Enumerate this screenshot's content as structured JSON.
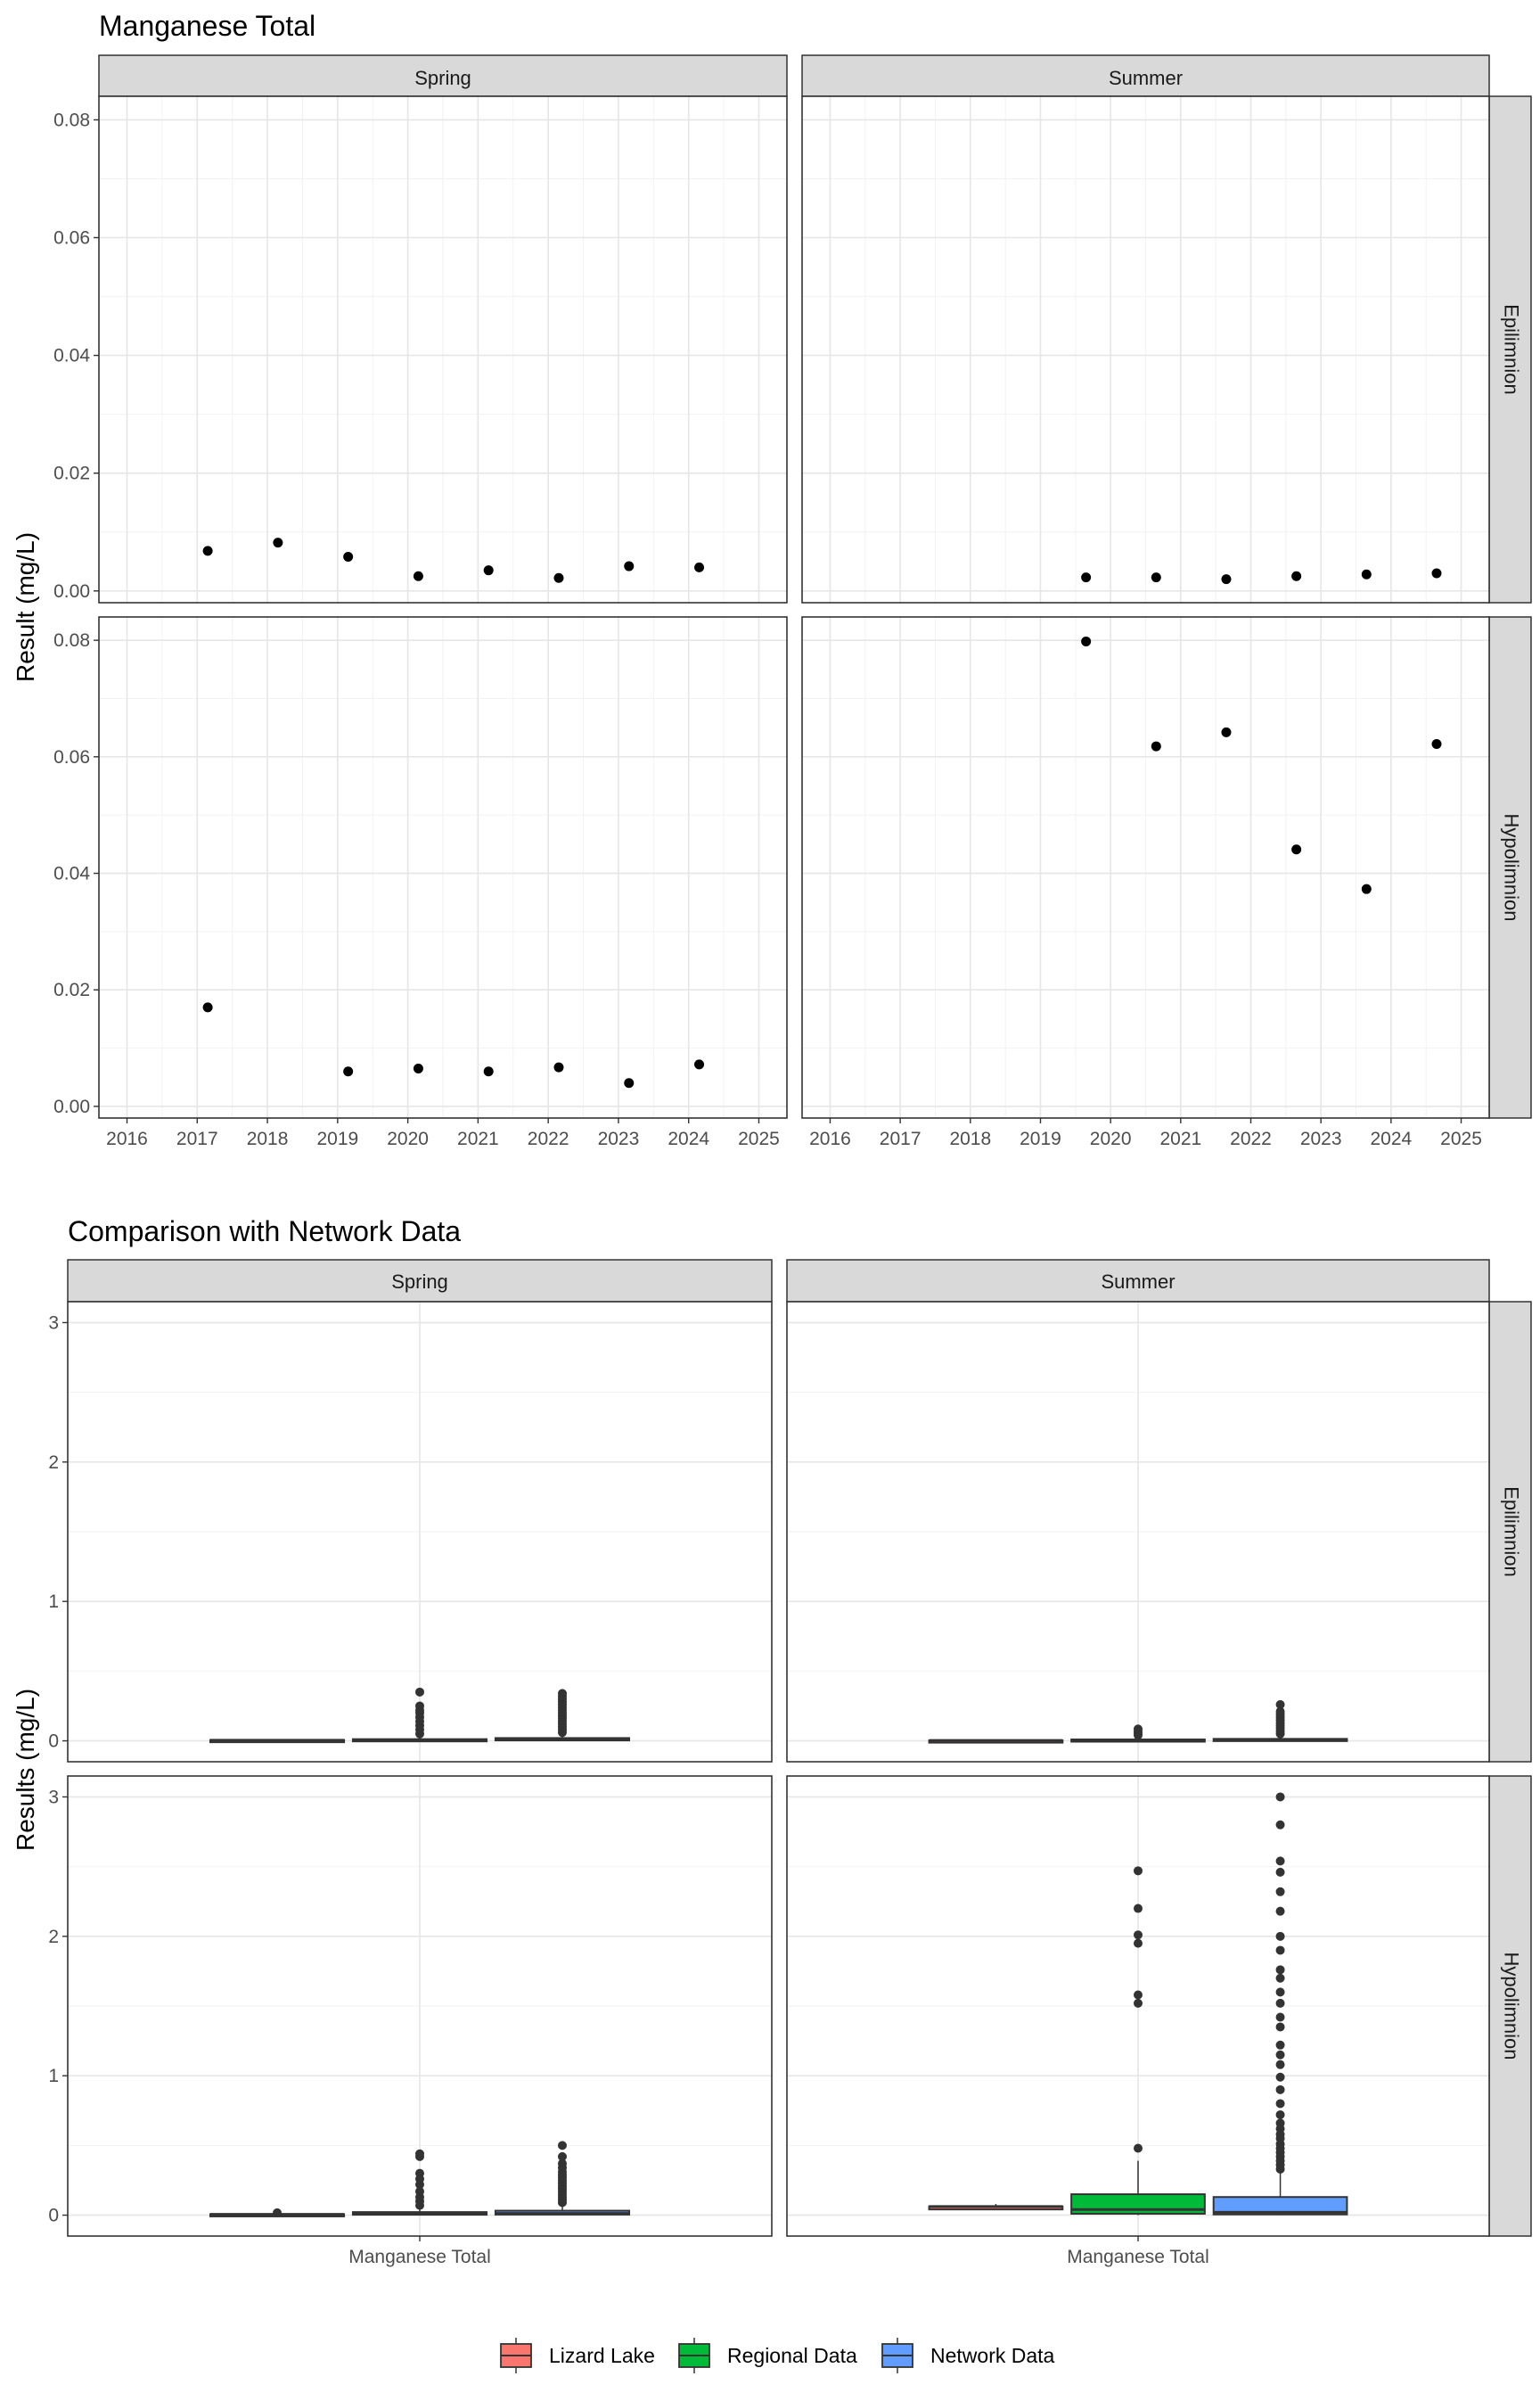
{
  "chart_data": [
    {
      "type": "scatter",
      "title": "Manganese Total",
      "ylabel": "Result (mg/L)",
      "xlabel": "",
      "columns": [
        "Spring",
        "Summer"
      ],
      "rows": [
        "Epilimnion",
        "Hypolimnion"
      ],
      "x_ticks": [
        2016,
        2017,
        2018,
        2019,
        2020,
        2021,
        2022,
        2023,
        2024,
        2025
      ],
      "xlim": [
        2015.6,
        2025.4
      ],
      "y_ticks": [
        "0.00",
        "0.02",
        "0.04",
        "0.06",
        "0.08"
      ],
      "ylim": [
        -0.002,
        0.084
      ],
      "grid": true,
      "panels": [
        {
          "row": "Epilimnion",
          "col": "Spring",
          "points": [
            {
              "x": 2017.15,
              "y": 0.0068
            },
            {
              "x": 2018.15,
              "y": 0.0082
            },
            {
              "x": 2019.15,
              "y": 0.0058
            },
            {
              "x": 2020.15,
              "y": 0.0025
            },
            {
              "x": 2021.15,
              "y": 0.0035
            },
            {
              "x": 2022.15,
              "y": 0.0022
            },
            {
              "x": 2023.15,
              "y": 0.0042
            },
            {
              "x": 2024.15,
              "y": 0.004
            }
          ]
        },
        {
          "row": "Epilimnion",
          "col": "Summer",
          "points": [
            {
              "x": 2019.65,
              "y": 0.0023
            },
            {
              "x": 2020.65,
              "y": 0.0023
            },
            {
              "x": 2021.65,
              "y": 0.002
            },
            {
              "x": 2022.65,
              "y": 0.0025
            },
            {
              "x": 2023.65,
              "y": 0.0028
            },
            {
              "x": 2024.65,
              "y": 0.003
            }
          ]
        },
        {
          "row": "Hypolimnion",
          "col": "Spring",
          "points": [
            {
              "x": 2017.15,
              "y": 0.017
            },
            {
              "x": 2019.15,
              "y": 0.006
            },
            {
              "x": 2020.15,
              "y": 0.0065
            },
            {
              "x": 2021.15,
              "y": 0.006
            },
            {
              "x": 2022.15,
              "y": 0.0067
            },
            {
              "x": 2023.15,
              "y": 0.004
            },
            {
              "x": 2024.15,
              "y": 0.0072
            }
          ]
        },
        {
          "row": "Hypolimnion",
          "col": "Summer",
          "points": [
            {
              "x": 2019.65,
              "y": 0.0798
            },
            {
              "x": 2020.65,
              "y": 0.0618
            },
            {
              "x": 2021.65,
              "y": 0.0642
            },
            {
              "x": 2022.65,
              "y": 0.0441
            },
            {
              "x": 2023.65,
              "y": 0.0373
            },
            {
              "x": 2024.65,
              "y": 0.0622
            }
          ]
        }
      ]
    },
    {
      "type": "box",
      "title": "Comparison with Network Data",
      "ylabel": "Results (mg/L)",
      "xlabel": "",
      "columns": [
        "Spring",
        "Summer"
      ],
      "rows": [
        "Epilimnion",
        "Hypolimnion"
      ],
      "x_tick": "Manganese Total",
      "y_ticks": [
        "0",
        "1",
        "2",
        "3"
      ],
      "ylim": [
        -0.15,
        3.15
      ],
      "grid": true,
      "legend": {
        "position": "bottom",
        "entries": [
          {
            "name": "Lizard Lake",
            "color": "#F8766D"
          },
          {
            "name": "Regional Data",
            "color": "#00BA38"
          },
          {
            "name": "Network Data",
            "color": "#619CFF"
          }
        ]
      },
      "panels": [
        {
          "row": "Epilimnion",
          "col": "Spring",
          "groups": [
            {
              "group": "Lizard Lake",
              "q1": 0.003,
              "median": 0.004,
              "q3": 0.006,
              "whisker_low": 0.002,
              "whisker_high": 0.008,
              "outliers": []
            },
            {
              "group": "Regional Data",
              "q1": 0.002,
              "median": 0.005,
              "q3": 0.012,
              "whisker_low": 0.0,
              "whisker_high": 0.025,
              "outliers": [
                0.05,
                0.08,
                0.11,
                0.14,
                0.17,
                0.2,
                0.22,
                0.25,
                0.35
              ]
            },
            {
              "group": "Network Data",
              "q1": 0.003,
              "median": 0.008,
              "q3": 0.02,
              "whisker_low": 0.0,
              "whisker_high": 0.045,
              "outliers": [
                0.06,
                0.08,
                0.1,
                0.12,
                0.14,
                0.16,
                0.18,
                0.2,
                0.22,
                0.24,
                0.26,
                0.28,
                0.3,
                0.32,
                0.34
              ]
            }
          ]
        },
        {
          "row": "Epilimnion",
          "col": "Summer",
          "groups": [
            {
              "group": "Lizard Lake",
              "q1": 0.002,
              "median": 0.0025,
              "q3": 0.003,
              "whisker_low": 0.002,
              "whisker_high": 0.003,
              "outliers": []
            },
            {
              "group": "Regional Data",
              "q1": 0.002,
              "median": 0.004,
              "q3": 0.01,
              "whisker_low": 0.0,
              "whisker_high": 0.02,
              "outliers": [
                0.04,
                0.055,
                0.07,
                0.085
              ]
            },
            {
              "group": "Network Data",
              "q1": 0.002,
              "median": 0.005,
              "q3": 0.014,
              "whisker_low": 0.0,
              "whisker_high": 0.03,
              "outliers": [
                0.05,
                0.07,
                0.09,
                0.11,
                0.13,
                0.15,
                0.17,
                0.19,
                0.21,
                0.26
              ]
            }
          ]
        },
        {
          "row": "Hypolimnion",
          "col": "Spring",
          "groups": [
            {
              "group": "Lizard Lake",
              "q1": 0.005,
              "median": 0.006,
              "q3": 0.007,
              "whisker_low": 0.004,
              "whisker_high": 0.008,
              "outliers": [
                0.017
              ]
            },
            {
              "group": "Regional Data",
              "q1": 0.003,
              "median": 0.008,
              "q3": 0.022,
              "whisker_low": 0.0,
              "whisker_high": 0.05,
              "outliers": [
                0.07,
                0.1,
                0.13,
                0.17,
                0.22,
                0.26,
                0.3,
                0.42,
                0.44
              ]
            },
            {
              "group": "Network Data",
              "q1": 0.004,
              "median": 0.012,
              "q3": 0.032,
              "whisker_low": 0.0,
              "whisker_high": 0.07,
              "outliers": [
                0.09,
                0.11,
                0.13,
                0.15,
                0.17,
                0.19,
                0.21,
                0.23,
                0.25,
                0.27,
                0.29,
                0.31,
                0.34,
                0.37,
                0.42,
                0.5
              ]
            }
          ]
        },
        {
          "row": "Hypolimnion",
          "col": "Summer",
          "groups": [
            {
              "group": "Lizard Lake",
              "q1": 0.041,
              "median": 0.062,
              "q3": 0.063,
              "whisker_low": 0.037,
              "whisker_high": 0.08,
              "outliers": []
            },
            {
              "group": "Regional Data",
              "q1": 0.01,
              "median": 0.04,
              "q3": 0.15,
              "whisker_low": 0.0,
              "whisker_high": 0.39,
              "outliers": [
                0.48,
                1.52,
                1.58,
                1.95,
                2.01,
                2.2,
                2.47
              ]
            },
            {
              "group": "Network Data",
              "q1": 0.005,
              "median": 0.02,
              "q3": 0.13,
              "whisker_low": 0.0,
              "whisker_high": 0.31,
              "outliers": [
                0.33,
                0.36,
                0.39,
                0.42,
                0.45,
                0.48,
                0.51,
                0.55,
                0.58,
                0.62,
                0.66,
                0.72,
                0.8,
                0.9,
                0.99,
                1.08,
                1.15,
                1.22,
                1.35,
                1.42,
                1.52,
                1.6,
                1.7,
                1.76,
                1.9,
                2.0,
                2.18,
                2.32,
                2.46,
                2.54,
                2.8,
                3.0
              ]
            }
          ]
        }
      ]
    }
  ]
}
